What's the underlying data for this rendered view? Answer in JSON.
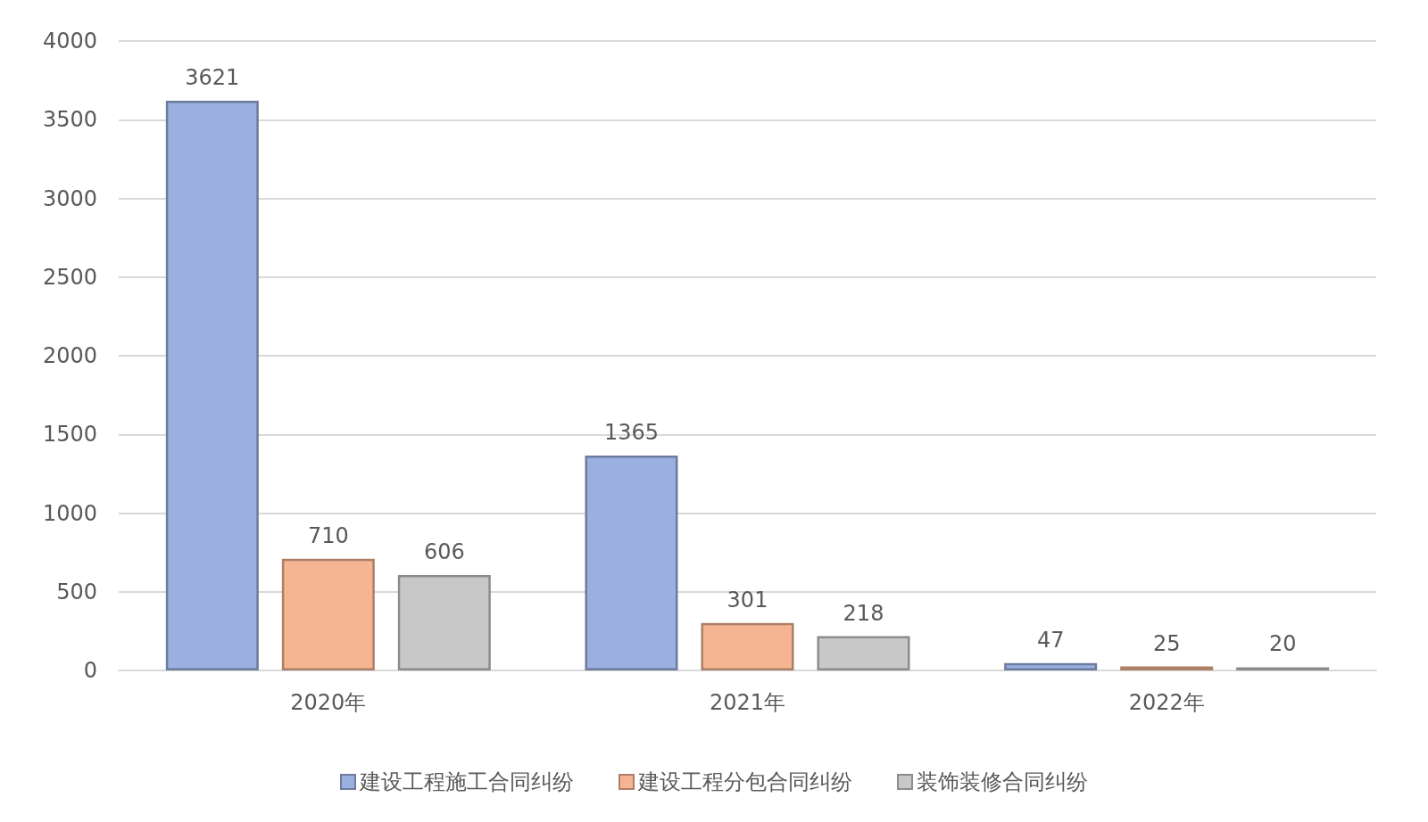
{
  "chart_data": {
    "type": "bar",
    "categories": [
      "2020年",
      "2021年",
      "2022年"
    ],
    "series": [
      {
        "name": "建设工程施工合同纠纷",
        "color": "#9bb0e0",
        "values": [
          3621,
          1365,
          47
        ]
      },
      {
        "name": "建设工程分包合同纠纷",
        "color": "#f5b593",
        "values": [
          710,
          301,
          25
        ]
      },
      {
        "name": "装饰装修合同纠纷",
        "color": "#c8c8c8",
        "values": [
          606,
          218,
          20
        ]
      }
    ],
    "ylim": [
      0,
      4000
    ],
    "yticks": [
      0,
      500,
      1000,
      1500,
      2000,
      2500,
      3000,
      3500,
      4000
    ],
    "grid": "y",
    "legend": "bottom",
    "data_labels": true
  }
}
